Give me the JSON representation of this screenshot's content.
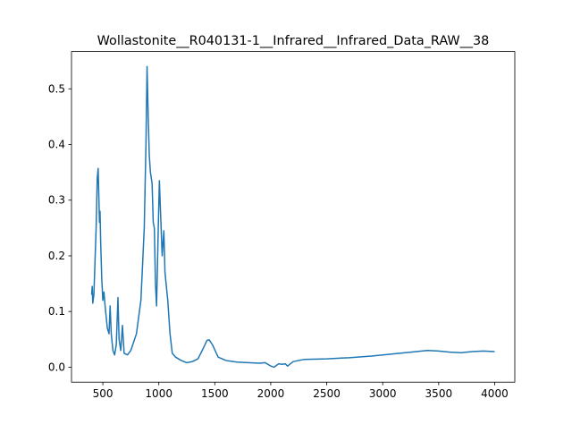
{
  "chart_data": {
    "type": "line",
    "title": "Wollastonite__R040131-1__Infrared__Infrared_Data_RAW__38",
    "x": [
      400,
      405,
      410,
      420,
      440,
      450,
      458,
      465,
      470,
      475,
      480,
      490,
      500,
      510,
      520,
      540,
      555,
      565,
      575,
      590,
      605,
      620,
      635,
      645,
      660,
      675,
      690,
      720,
      750,
      800,
      840,
      870,
      885,
      895,
      905,
      915,
      925,
      940,
      950,
      960,
      970,
      980,
      995,
      1005,
      1015,
      1030,
      1045,
      1055,
      1080,
      1100,
      1120,
      1150,
      1200,
      1250,
      1300,
      1350,
      1400,
      1430,
      1450,
      1480,
      1530,
      1600,
      1700,
      1800,
      1900,
      1950,
      2000,
      2030,
      2070,
      2100,
      2130,
      2150,
      2200,
      2300,
      2500,
      2700,
      2900,
      3000,
      3200,
      3400,
      3500,
      3600,
      3700,
      3800,
      3900,
      4000
    ],
    "series": [
      {
        "color": "#1f77b4",
        "values": [
          0.13,
          0.145,
          0.115,
          0.13,
          0.25,
          0.34,
          0.357,
          0.3,
          0.26,
          0.28,
          0.23,
          0.16,
          0.12,
          0.135,
          0.11,
          0.07,
          0.06,
          0.11,
          0.06,
          0.03,
          0.022,
          0.04,
          0.125,
          0.05,
          0.03,
          0.075,
          0.025,
          0.022,
          0.03,
          0.06,
          0.12,
          0.25,
          0.4,
          0.54,
          0.45,
          0.38,
          0.35,
          0.33,
          0.26,
          0.25,
          0.15,
          0.11,
          0.25,
          0.335,
          0.28,
          0.2,
          0.245,
          0.17,
          0.12,
          0.06,
          0.025,
          0.018,
          0.012,
          0.008,
          0.01,
          0.015,
          0.035,
          0.048,
          0.049,
          0.04,
          0.018,
          0.012,
          0.009,
          0.008,
          0.007,
          0.008,
          0.002,
          0.0,
          0.006,
          0.005,
          0.006,
          0.002,
          0.01,
          0.014,
          0.015,
          0.017,
          0.02,
          0.022,
          0.026,
          0.03,
          0.029,
          0.027,
          0.026,
          0.028,
          0.029,
          0.028
        ]
      }
    ],
    "xlim": [
      220,
      4180
    ],
    "ylim": [
      -0.027,
      0.567
    ],
    "xticks": [
      500,
      1000,
      1500,
      2000,
      2500,
      3000,
      3500,
      4000
    ],
    "yticks": [
      {
        "value": 0,
        "label": "0.0"
      },
      0.1,
      0.2,
      0.3,
      0.4,
      0.5
    ]
  }
}
